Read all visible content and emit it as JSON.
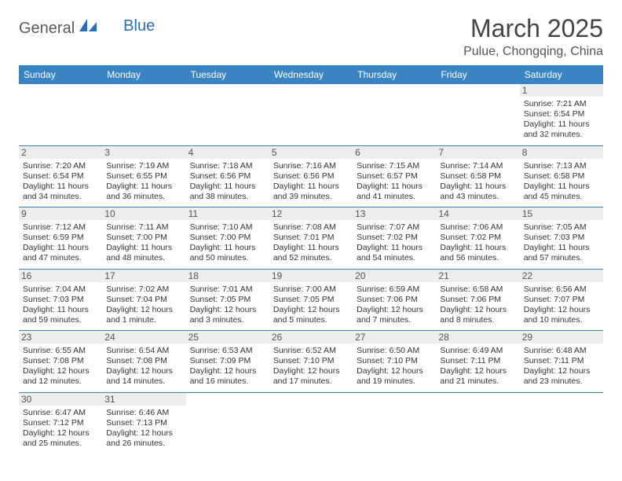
{
  "logo": {
    "text1": "General",
    "text2": "Blue"
  },
  "title": "March 2025",
  "location": "Pulue, Chongqing, China",
  "colors": {
    "header_bg": "#3b84c4",
    "header_text": "#ffffff",
    "daynum_bg": "#eceded",
    "border": "#3b84c4",
    "logo_blue": "#2a6fb5"
  },
  "day_headers": [
    "Sunday",
    "Monday",
    "Tuesday",
    "Wednesday",
    "Thursday",
    "Friday",
    "Saturday"
  ],
  "weeks": [
    [
      null,
      null,
      null,
      null,
      null,
      null,
      {
        "n": "1",
        "sr": "Sunrise: 7:21 AM",
        "ss": "Sunset: 6:54 PM",
        "dl": "Daylight: 11 hours and 32 minutes."
      }
    ],
    [
      {
        "n": "2",
        "sr": "Sunrise: 7:20 AM",
        "ss": "Sunset: 6:54 PM",
        "dl": "Daylight: 11 hours and 34 minutes."
      },
      {
        "n": "3",
        "sr": "Sunrise: 7:19 AM",
        "ss": "Sunset: 6:55 PM",
        "dl": "Daylight: 11 hours and 36 minutes."
      },
      {
        "n": "4",
        "sr": "Sunrise: 7:18 AM",
        "ss": "Sunset: 6:56 PM",
        "dl": "Daylight: 11 hours and 38 minutes."
      },
      {
        "n": "5",
        "sr": "Sunrise: 7:16 AM",
        "ss": "Sunset: 6:56 PM",
        "dl": "Daylight: 11 hours and 39 minutes."
      },
      {
        "n": "6",
        "sr": "Sunrise: 7:15 AM",
        "ss": "Sunset: 6:57 PM",
        "dl": "Daylight: 11 hours and 41 minutes."
      },
      {
        "n": "7",
        "sr": "Sunrise: 7:14 AM",
        "ss": "Sunset: 6:58 PM",
        "dl": "Daylight: 11 hours and 43 minutes."
      },
      {
        "n": "8",
        "sr": "Sunrise: 7:13 AM",
        "ss": "Sunset: 6:58 PM",
        "dl": "Daylight: 11 hours and 45 minutes."
      }
    ],
    [
      {
        "n": "9",
        "sr": "Sunrise: 7:12 AM",
        "ss": "Sunset: 6:59 PM",
        "dl": "Daylight: 11 hours and 47 minutes."
      },
      {
        "n": "10",
        "sr": "Sunrise: 7:11 AM",
        "ss": "Sunset: 7:00 PM",
        "dl": "Daylight: 11 hours and 48 minutes."
      },
      {
        "n": "11",
        "sr": "Sunrise: 7:10 AM",
        "ss": "Sunset: 7:00 PM",
        "dl": "Daylight: 11 hours and 50 minutes."
      },
      {
        "n": "12",
        "sr": "Sunrise: 7:08 AM",
        "ss": "Sunset: 7:01 PM",
        "dl": "Daylight: 11 hours and 52 minutes."
      },
      {
        "n": "13",
        "sr": "Sunrise: 7:07 AM",
        "ss": "Sunset: 7:02 PM",
        "dl": "Daylight: 11 hours and 54 minutes."
      },
      {
        "n": "14",
        "sr": "Sunrise: 7:06 AM",
        "ss": "Sunset: 7:02 PM",
        "dl": "Daylight: 11 hours and 56 minutes."
      },
      {
        "n": "15",
        "sr": "Sunrise: 7:05 AM",
        "ss": "Sunset: 7:03 PM",
        "dl": "Daylight: 11 hours and 57 minutes."
      }
    ],
    [
      {
        "n": "16",
        "sr": "Sunrise: 7:04 AM",
        "ss": "Sunset: 7:03 PM",
        "dl": "Daylight: 11 hours and 59 minutes."
      },
      {
        "n": "17",
        "sr": "Sunrise: 7:02 AM",
        "ss": "Sunset: 7:04 PM",
        "dl": "Daylight: 12 hours and 1 minute."
      },
      {
        "n": "18",
        "sr": "Sunrise: 7:01 AM",
        "ss": "Sunset: 7:05 PM",
        "dl": "Daylight: 12 hours and 3 minutes."
      },
      {
        "n": "19",
        "sr": "Sunrise: 7:00 AM",
        "ss": "Sunset: 7:05 PM",
        "dl": "Daylight: 12 hours and 5 minutes."
      },
      {
        "n": "20",
        "sr": "Sunrise: 6:59 AM",
        "ss": "Sunset: 7:06 PM",
        "dl": "Daylight: 12 hours and 7 minutes."
      },
      {
        "n": "21",
        "sr": "Sunrise: 6:58 AM",
        "ss": "Sunset: 7:06 PM",
        "dl": "Daylight: 12 hours and 8 minutes."
      },
      {
        "n": "22",
        "sr": "Sunrise: 6:56 AM",
        "ss": "Sunset: 7:07 PM",
        "dl": "Daylight: 12 hours and 10 minutes."
      }
    ],
    [
      {
        "n": "23",
        "sr": "Sunrise: 6:55 AM",
        "ss": "Sunset: 7:08 PM",
        "dl": "Daylight: 12 hours and 12 minutes."
      },
      {
        "n": "24",
        "sr": "Sunrise: 6:54 AM",
        "ss": "Sunset: 7:08 PM",
        "dl": "Daylight: 12 hours and 14 minutes."
      },
      {
        "n": "25",
        "sr": "Sunrise: 6:53 AM",
        "ss": "Sunset: 7:09 PM",
        "dl": "Daylight: 12 hours and 16 minutes."
      },
      {
        "n": "26",
        "sr": "Sunrise: 6:52 AM",
        "ss": "Sunset: 7:10 PM",
        "dl": "Daylight: 12 hours and 17 minutes."
      },
      {
        "n": "27",
        "sr": "Sunrise: 6:50 AM",
        "ss": "Sunset: 7:10 PM",
        "dl": "Daylight: 12 hours and 19 minutes."
      },
      {
        "n": "28",
        "sr": "Sunrise: 6:49 AM",
        "ss": "Sunset: 7:11 PM",
        "dl": "Daylight: 12 hours and 21 minutes."
      },
      {
        "n": "29",
        "sr": "Sunrise: 6:48 AM",
        "ss": "Sunset: 7:11 PM",
        "dl": "Daylight: 12 hours and 23 minutes."
      }
    ],
    [
      {
        "n": "30",
        "sr": "Sunrise: 6:47 AM",
        "ss": "Sunset: 7:12 PM",
        "dl": "Daylight: 12 hours and 25 minutes."
      },
      {
        "n": "31",
        "sr": "Sunrise: 6:46 AM",
        "ss": "Sunset: 7:13 PM",
        "dl": "Daylight: 12 hours and 26 minutes."
      },
      null,
      null,
      null,
      null,
      null
    ]
  ]
}
